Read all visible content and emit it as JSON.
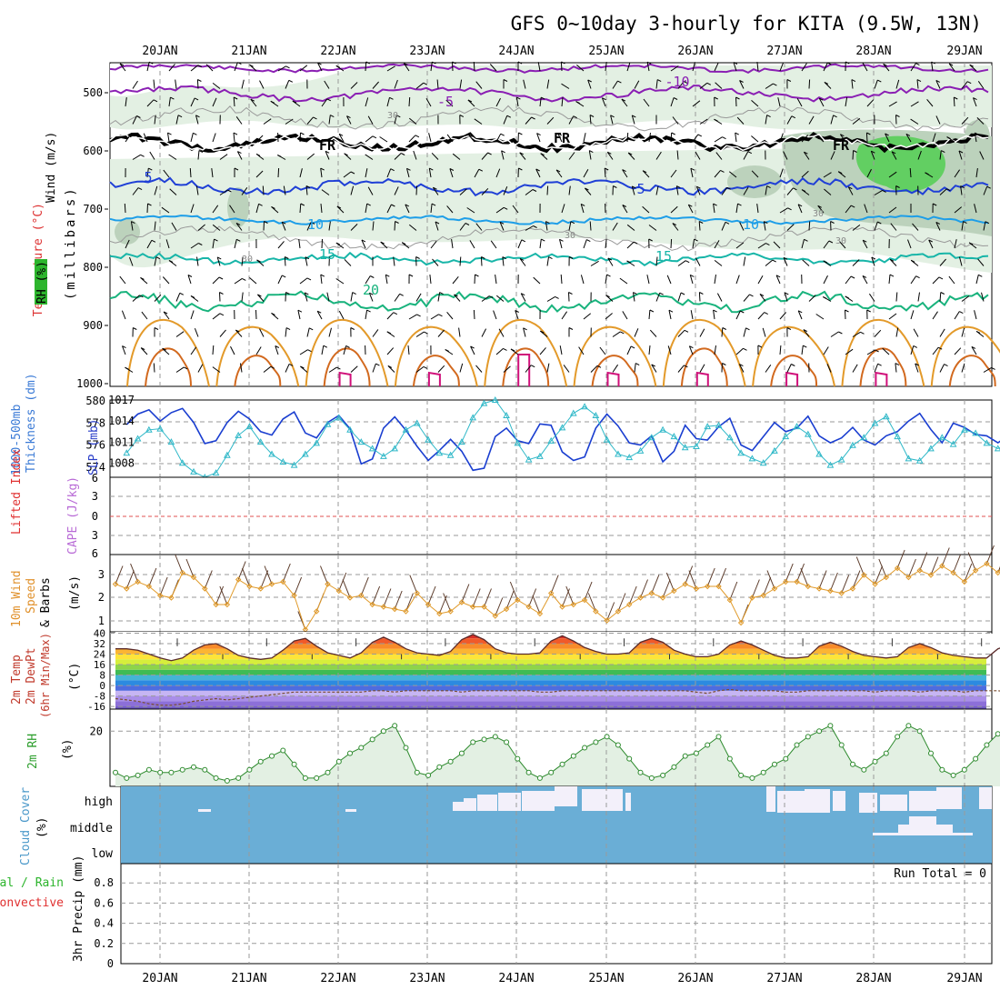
{
  "title": "GFS 0~10day 3-hourly for KITA (9.5W, 13N)",
  "colors": {
    "grid": "#9a9a9a",
    "purple": "#8a1fb3",
    "black": "#000000",
    "blue": "#1f3fd6",
    "sky": "#1e9ee8",
    "teal": "#17b5a8",
    "green": "#19b37d",
    "orange": "#e39a2a",
    "darkorange": "#d2691e",
    "magenta": "#d0107a",
    "rhfill": "#e3f0e3",
    "rhfill2": "#bcd2bc",
    "rhgreen": "#62cf62",
    "cloud": "#6aaed6",
    "cloudgap": "#f3f0fa"
  },
  "days": [
    "20JAN",
    "21JAN",
    "22JAN",
    "23JAN",
    "24JAN",
    "25JAN",
    "26JAN",
    "27JAN",
    "28JAN",
    "29JAN"
  ],
  "panels": {
    "upper": {
      "labels": [
        "Wind (m/s)",
        "Temperature (°C)",
        "RH (%)",
        "(millibars)"
      ],
      "yticks": [
        "500",
        "600",
        "700",
        "800",
        "900",
        "1000"
      ],
      "contour_labels": [
        "-10",
        "-5",
        "FR",
        "FR",
        "FR",
        "5",
        "5",
        "10",
        "10",
        "15",
        "15",
        "20",
        "30",
        "30",
        "30",
        "30",
        "30"
      ]
    },
    "slp": {
      "labels": [
        "1000-500mb",
        "Thickness (dm)",
        "SLP (mb)"
      ],
      "left_ticks": [
        "580",
        "578",
        "576",
        "574"
      ],
      "right_ticks": [
        "1017",
        "1014",
        "1011",
        "1008"
      ]
    },
    "cape": {
      "labels": [
        "Lifted Index",
        "CAPE (J/kg)"
      ],
      "yticks": [
        "6",
        "3",
        "0",
        "3",
        "6"
      ]
    },
    "wind10": {
      "labels": [
        "10m Wind",
        "Speed",
        "& Barbs",
        "(m/s)"
      ],
      "yticks": [
        "3",
        "2",
        "1"
      ]
    },
    "temp": {
      "labels": [
        "2m Temp",
        "2m DewPt",
        "(6hr Min/Max)",
        "(°C)"
      ],
      "yticks": [
        "40",
        "32",
        "24",
        "16",
        "8",
        "0",
        "-8",
        "-16"
      ]
    },
    "rh2m": {
      "labels": [
        "2m RH",
        "(%)"
      ],
      "yticks": [
        "20"
      ]
    },
    "cloud": {
      "labels": [
        "Cloud Cover",
        "(%)"
      ],
      "levels": [
        "high",
        "middle",
        "low"
      ]
    },
    "precip": {
      "labels": [
        "Total / Rain",
        "Convective",
        "3hr Precip (mm)"
      ],
      "yticks": [
        "0.8",
        "0.6",
        "0.4",
        "0.2",
        "0"
      ],
      "run_total": "Run Total = 0"
    }
  },
  "chart_data": [
    {
      "type": "line",
      "title": "1000-500mb Thickness (dm) / SLP (mb)",
      "x_start": "20JAN 00Z (approx, 3-hourly)",
      "series": [
        {
          "name": "SLP (mb)",
          "values": [
            1013.5,
            1015.0,
            1015.6,
            1014.0,
            1015.2,
            1015.8,
            1013.8,
            1010.8,
            1011.2,
            1013.8,
            1015.4,
            1014.3,
            1012.5,
            1012.0,
            1014.3,
            1015.3,
            1012.3,
            1011.6,
            1013.8,
            1014.8,
            1012.9,
            1007.9,
            1008.6,
            1013.0,
            1014.6,
            1012.7,
            1010.4,
            1008.4,
            1009.8,
            1011.4,
            1009.7,
            1007.0,
            1007.3,
            1011.8,
            1013.0,
            1011.2,
            1010.8,
            1013.6,
            1013.4,
            1009.6,
            1008.4,
            1008.9,
            1013.0,
            1015.0,
            1013.3,
            1010.9,
            1010.6,
            1011.9,
            1008.2,
            1009.7,
            1013.4,
            1011.5,
            1011.3,
            1013.2,
            1014.4,
            1010.6,
            1009.8,
            1011.8,
            1013.8,
            1012.5,
            1013.0,
            1014.7,
            1011.9,
            1010.9,
            1011.6,
            1013.1,
            1011.3,
            1010.6,
            1011.9,
            1012.5,
            1014.0,
            1015.1,
            1012.8,
            1010.9,
            1013.7,
            1013.1,
            1012.1,
            1011.9,
            1010.9,
            1012.0
          ]
        },
        {
          "name": "1000-500mb Thickness (dm)",
          "values": [
            575.2,
            576.5,
            577.3,
            577.4,
            576.2,
            574.3,
            573.5,
            573.0,
            573.4,
            575.0,
            576.8,
            577.6,
            576.2,
            575.1,
            574.4,
            574.1,
            575.1,
            576.1,
            577.8,
            578.4,
            577.3,
            576.2,
            575.6,
            574.9,
            575.6,
            577.3,
            577.9,
            576.4,
            575.2,
            575.0,
            576.2,
            578.4,
            579.7,
            580.0,
            578.6,
            576.1,
            574.6,
            574.9,
            576.3,
            577.5,
            578.8,
            579.4,
            578.6,
            576.4,
            575.1,
            574.8,
            575.4,
            576.6,
            577.3,
            576.7,
            575.7,
            575.8,
            577.6,
            577.7,
            576.6,
            575.2,
            574.7,
            574.3,
            575.4,
            576.7,
            577.6,
            576.9,
            575.1,
            574.1,
            574.6,
            575.9,
            576.6,
            577.9,
            578.5,
            576.7,
            574.7,
            574.5,
            575.6,
            576.6,
            576.0,
            577.3,
            577.0,
            576.1,
            575.6,
            576.0
          ]
        }
      ],
      "ylim_left": [
        573,
        580
      ],
      "ylim_right": [
        1006,
        1017
      ]
    },
    {
      "type": "line",
      "title": "10m Wind Speed (m/s)",
      "series": [
        {
          "name": "10m Wind Speed",
          "values": [
            2.5,
            2.3,
            2.6,
            2.4,
            2.0,
            1.9,
            3.0,
            2.8,
            2.3,
            1.6,
            1.6,
            2.7,
            2.4,
            2.3,
            2.5,
            2.6,
            2.0,
            0.5,
            1.3,
            2.5,
            2.2,
            1.9,
            2.0,
            1.6,
            1.5,
            1.4,
            1.3,
            2.1,
            1.6,
            1.2,
            1.3,
            1.7,
            1.5,
            1.5,
            1.1,
            1.4,
            1.8,
            1.5,
            1.2,
            2.1,
            1.5,
            1.6,
            1.8,
            1.3,
            0.9,
            1.3,
            1.6,
            1.9,
            2.1,
            1.9,
            2.2,
            2.5,
            2.3,
            2.4,
            2.4,
            1.8,
            0.8,
            1.9,
            2.0,
            2.3,
            2.6,
            2.6,
            2.4,
            2.3,
            2.2,
            2.1,
            2.3,
            2.9,
            2.5,
            2.8,
            3.2,
            2.8,
            3.1,
            2.9,
            3.3,
            3.0,
            2.6,
            3.1,
            3.4,
            3.0,
            3.6,
            3.1,
            2.9,
            2.7,
            2.8,
            3.1
          ]
        }
      ],
      "ylim": [
        0.4,
        3.8
      ]
    },
    {
      "type": "area",
      "title": "2m Temp (°C)",
      "series": [
        {
          "name": "2m Temp",
          "values": [
            28,
            28,
            27,
            24,
            21,
            19,
            21,
            27,
            31,
            32,
            28,
            23,
            21,
            20,
            21,
            27,
            34,
            36,
            30,
            25,
            23,
            21,
            25,
            33,
            37,
            33,
            28,
            25,
            24,
            23,
            26,
            35,
            39,
            35,
            28,
            25,
            24,
            24,
            25,
            34,
            38,
            34,
            29,
            26,
            24,
            24,
            25,
            33,
            36,
            33,
            27,
            24,
            22,
            22,
            24,
            31,
            34,
            31,
            27,
            23,
            21,
            21,
            22,
            30,
            33,
            30,
            26,
            23,
            22,
            21,
            22,
            29,
            32,
            29,
            25,
            23,
            22,
            21,
            21,
            28,
            31,
            29,
            25,
            23,
            22,
            21
          ]
        },
        {
          "name": "2m DewPt",
          "values": [
            -10,
            -11,
            -12,
            -14,
            -15,
            -15,
            -14,
            -12,
            -11,
            -10,
            -11,
            -10,
            -9,
            -8,
            -7,
            -6,
            -5,
            -5,
            -5,
            -5,
            -5,
            -5,
            -5,
            -4,
            -4,
            -5,
            -4,
            -4,
            -4,
            -4,
            -4,
            -5,
            -4,
            -4,
            -4,
            -4,
            -4,
            -4,
            -5,
            -5,
            -4,
            -4,
            -4,
            -4,
            -4,
            -4,
            -4,
            -4,
            -4,
            -4,
            -4,
            -4,
            -5,
            -6,
            -4,
            -3,
            -4,
            -4,
            -4,
            -4,
            -5,
            -5,
            -4,
            -4,
            -4,
            -4,
            -4,
            -4,
            -5,
            -4,
            -4,
            -4,
            -5,
            -4,
            -4,
            -4,
            -5,
            -4,
            -4,
            -4,
            -5,
            -4,
            -4,
            -6,
            -5,
            -5
          ]
        }
      ],
      "ylim": [
        -18,
        41
      ]
    },
    {
      "type": "area",
      "title": "2m RH (%)",
      "series": [
        {
          "name": "2m RH (%)",
          "values": [
            5,
            3,
            4,
            6,
            5,
            5,
            6,
            7,
            6,
            3,
            2,
            3,
            6,
            9,
            11,
            13,
            8,
            3,
            3,
            5,
            9,
            12,
            14,
            17,
            20,
            22,
            14,
            5,
            4,
            7,
            9,
            12,
            16,
            17,
            18,
            16,
            10,
            5,
            3,
            5,
            8,
            11,
            14,
            16,
            18,
            15,
            10,
            5,
            3,
            4,
            7,
            11,
            12,
            15,
            18,
            10,
            4,
            3,
            5,
            8,
            10,
            15,
            18,
            20,
            22,
            15,
            8,
            6,
            9,
            12,
            18,
            22,
            20,
            12,
            6,
            4,
            6,
            10,
            15,
            19,
            21,
            22,
            17,
            10,
            6,
            7
          ]
        }
      ],
      "ylim": [
        0,
        28
      ]
    },
    {
      "type": "table",
      "title": "3hr Precip (mm)",
      "values": [],
      "ylim": [
        0,
        1
      ]
    }
  ]
}
